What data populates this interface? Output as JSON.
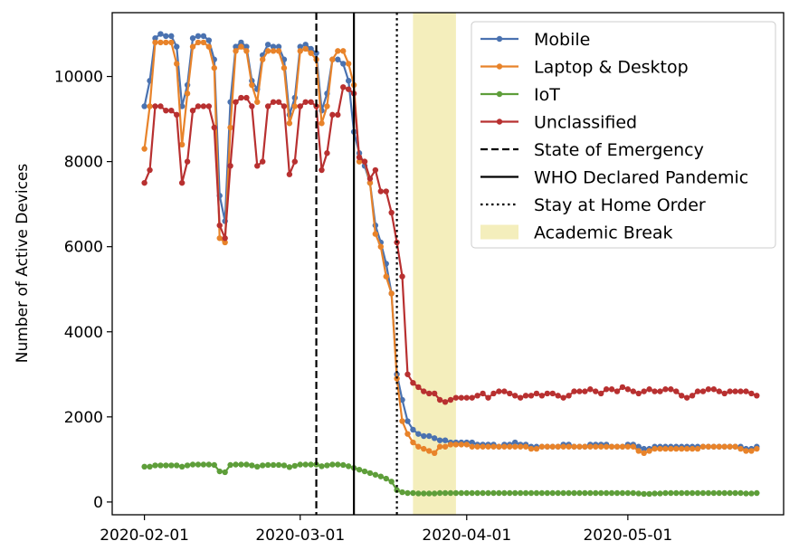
{
  "chart_data": {
    "type": "line",
    "title": "",
    "xlabel": "",
    "ylabel": "Number of Active Devices",
    "x_start": "2020-02-01",
    "x_end": "2020-05-27",
    "ylim": [
      -300,
      11500
    ],
    "xlim_dates": [
      "2020-01-26",
      "2020-05-30"
    ],
    "x_ticks": [
      "2020-02-01",
      "2020-03-01",
      "2020-04-01",
      "2020-05-01"
    ],
    "y_ticks": [
      0,
      2000,
      4000,
      6000,
      8000,
      10000
    ],
    "legend_position": "top-right",
    "series": [
      {
        "name": "Mobile",
        "color": "#4a72b0",
        "values": [
          9300,
          9900,
          10900,
          11000,
          10950,
          10950,
          10700,
          9300,
          9800,
          10900,
          10950,
          10950,
          10850,
          10400,
          7200,
          6600,
          9400,
          10700,
          10800,
          10700,
          9900,
          9700,
          10500,
          10750,
          10700,
          10700,
          10400,
          9100,
          9500,
          10700,
          10750,
          10650,
          10550,
          9200,
          9600,
          10400,
          10400,
          10300,
          9900,
          8700,
          8200,
          7900,
          7500,
          6500,
          6100,
          5600,
          4900,
          3000,
          2400,
          1900,
          1700,
          1600,
          1550,
          1550,
          1500,
          1450,
          1450,
          1400,
          1400,
          1400,
          1400,
          1400,
          1350,
          1350,
          1350,
          1350,
          1300,
          1350,
          1350,
          1400,
          1350,
          1350,
          1300,
          1300,
          1300,
          1300,
          1300,
          1300,
          1350,
          1350,
          1300,
          1300,
          1300,
          1350,
          1350,
          1350,
          1350,
          1300,
          1300,
          1300,
          1350,
          1350,
          1300,
          1250,
          1250,
          1300,
          1300,
          1300,
          1300,
          1300,
          1300,
          1300,
          1300,
          1300,
          1300,
          1300,
          1300,
          1300,
          1300,
          1300,
          1300,
          1300,
          1250,
          1250,
          1300
        ]
      },
      {
        "name": "Laptop & Desktop",
        "color": "#e8832a",
        "values": [
          8300,
          9300,
          10800,
          10800,
          10800,
          10800,
          10300,
          8400,
          9600,
          10700,
          10800,
          10800,
          10700,
          10200,
          6200,
          6100,
          8800,
          10600,
          10700,
          10600,
          9800,
          9400,
          10400,
          10600,
          10600,
          10600,
          10200,
          8900,
          9300,
          10600,
          10650,
          10550,
          10400,
          8900,
          9300,
          10400,
          10600,
          10600,
          10300,
          9800,
          8000,
          8000,
          7500,
          6300,
          6000,
          5300,
          4900,
          2900,
          1900,
          1600,
          1400,
          1300,
          1250,
          1200,
          1150,
          1300,
          1300,
          1350,
          1350,
          1350,
          1350,
          1300,
          1300,
          1300,
          1300,
          1300,
          1300,
          1300,
          1300,
          1300,
          1300,
          1300,
          1250,
          1250,
          1300,
          1300,
          1300,
          1300,
          1300,
          1300,
          1300,
          1300,
          1300,
          1300,
          1300,
          1300,
          1300,
          1300,
          1300,
          1300,
          1300,
          1300,
          1200,
          1150,
          1200,
          1250,
          1250,
          1250,
          1250,
          1250,
          1250,
          1250,
          1250,
          1250,
          1300,
          1300,
          1300,
          1300,
          1300,
          1300,
          1300,
          1250,
          1200,
          1200,
          1250
        ]
      },
      {
        "name": "IoT",
        "color": "#5e9e3a",
        "values": [
          830,
          830,
          860,
          860,
          860,
          860,
          860,
          830,
          860,
          880,
          880,
          880,
          880,
          870,
          720,
          700,
          870,
          880,
          880,
          880,
          860,
          830,
          860,
          870,
          870,
          870,
          860,
          820,
          850,
          880,
          880,
          880,
          880,
          840,
          860,
          880,
          880,
          870,
          840,
          800,
          760,
          720,
          680,
          640,
          600,
          550,
          480,
          280,
          230,
          210,
          210,
          200,
          200,
          200,
          200,
          210,
          210,
          210,
          210,
          210,
          210,
          210,
          210,
          210,
          210,
          210,
          210,
          210,
          210,
          210,
          210,
          210,
          210,
          210,
          210,
          210,
          210,
          210,
          210,
          210,
          210,
          210,
          210,
          210,
          210,
          210,
          210,
          210,
          210,
          210,
          210,
          210,
          200,
          190,
          190,
          200,
          200,
          210,
          210,
          210,
          210,
          210,
          210,
          210,
          210,
          210,
          210,
          210,
          210,
          210,
          210,
          210,
          200,
          200,
          210
        ]
      },
      {
        "name": "Unclassified",
        "color": "#b83030",
        "values": [
          7500,
          7800,
          9300,
          9300,
          9200,
          9200,
          9100,
          7500,
          8000,
          9200,
          9300,
          9300,
          9300,
          8800,
          6500,
          6200,
          7900,
          9400,
          9500,
          9500,
          9300,
          7900,
          8000,
          9300,
          9400,
          9400,
          9300,
          7700,
          8000,
          9300,
          9400,
          9400,
          9300,
          7800,
          8200,
          9100,
          9100,
          9750,
          9700,
          9600,
          8100,
          8000,
          7600,
          7800,
          7300,
          7300,
          6800,
          6100,
          5300,
          3000,
          2800,
          2700,
          2600,
          2550,
          2550,
          2400,
          2350,
          2400,
          2450,
          2450,
          2450,
          2450,
          2500,
          2550,
          2450,
          2550,
          2600,
          2600,
          2550,
          2500,
          2450,
          2500,
          2500,
          2550,
          2500,
          2550,
          2550,
          2500,
          2450,
          2500,
          2600,
          2600,
          2600,
          2650,
          2600,
          2550,
          2650,
          2650,
          2600,
          2700,
          2650,
          2600,
          2550,
          2600,
          2650,
          2600,
          2600,
          2650,
          2650,
          2600,
          2500,
          2450,
          2500,
          2600,
          2600,
          2650,
          2650,
          2600,
          2550,
          2600,
          2600,
          2600,
          2600,
          2550,
          2500
        ]
      }
    ],
    "events": [
      {
        "name": "State of Emergency",
        "date": "2020-03-04",
        "style": "dashed",
        "color": "#000000"
      },
      {
        "name": "WHO Declared Pandemic",
        "date": "2020-03-11",
        "style": "solid",
        "color": "#000000"
      },
      {
        "name": "Stay at Home Order",
        "date": "2020-03-19",
        "style": "dotted",
        "color": "#000000"
      }
    ],
    "spans": [
      {
        "name": "Academic Break",
        "start": "2020-03-22",
        "end": "2020-03-30",
        "color": "#e6d96a"
      }
    ]
  }
}
